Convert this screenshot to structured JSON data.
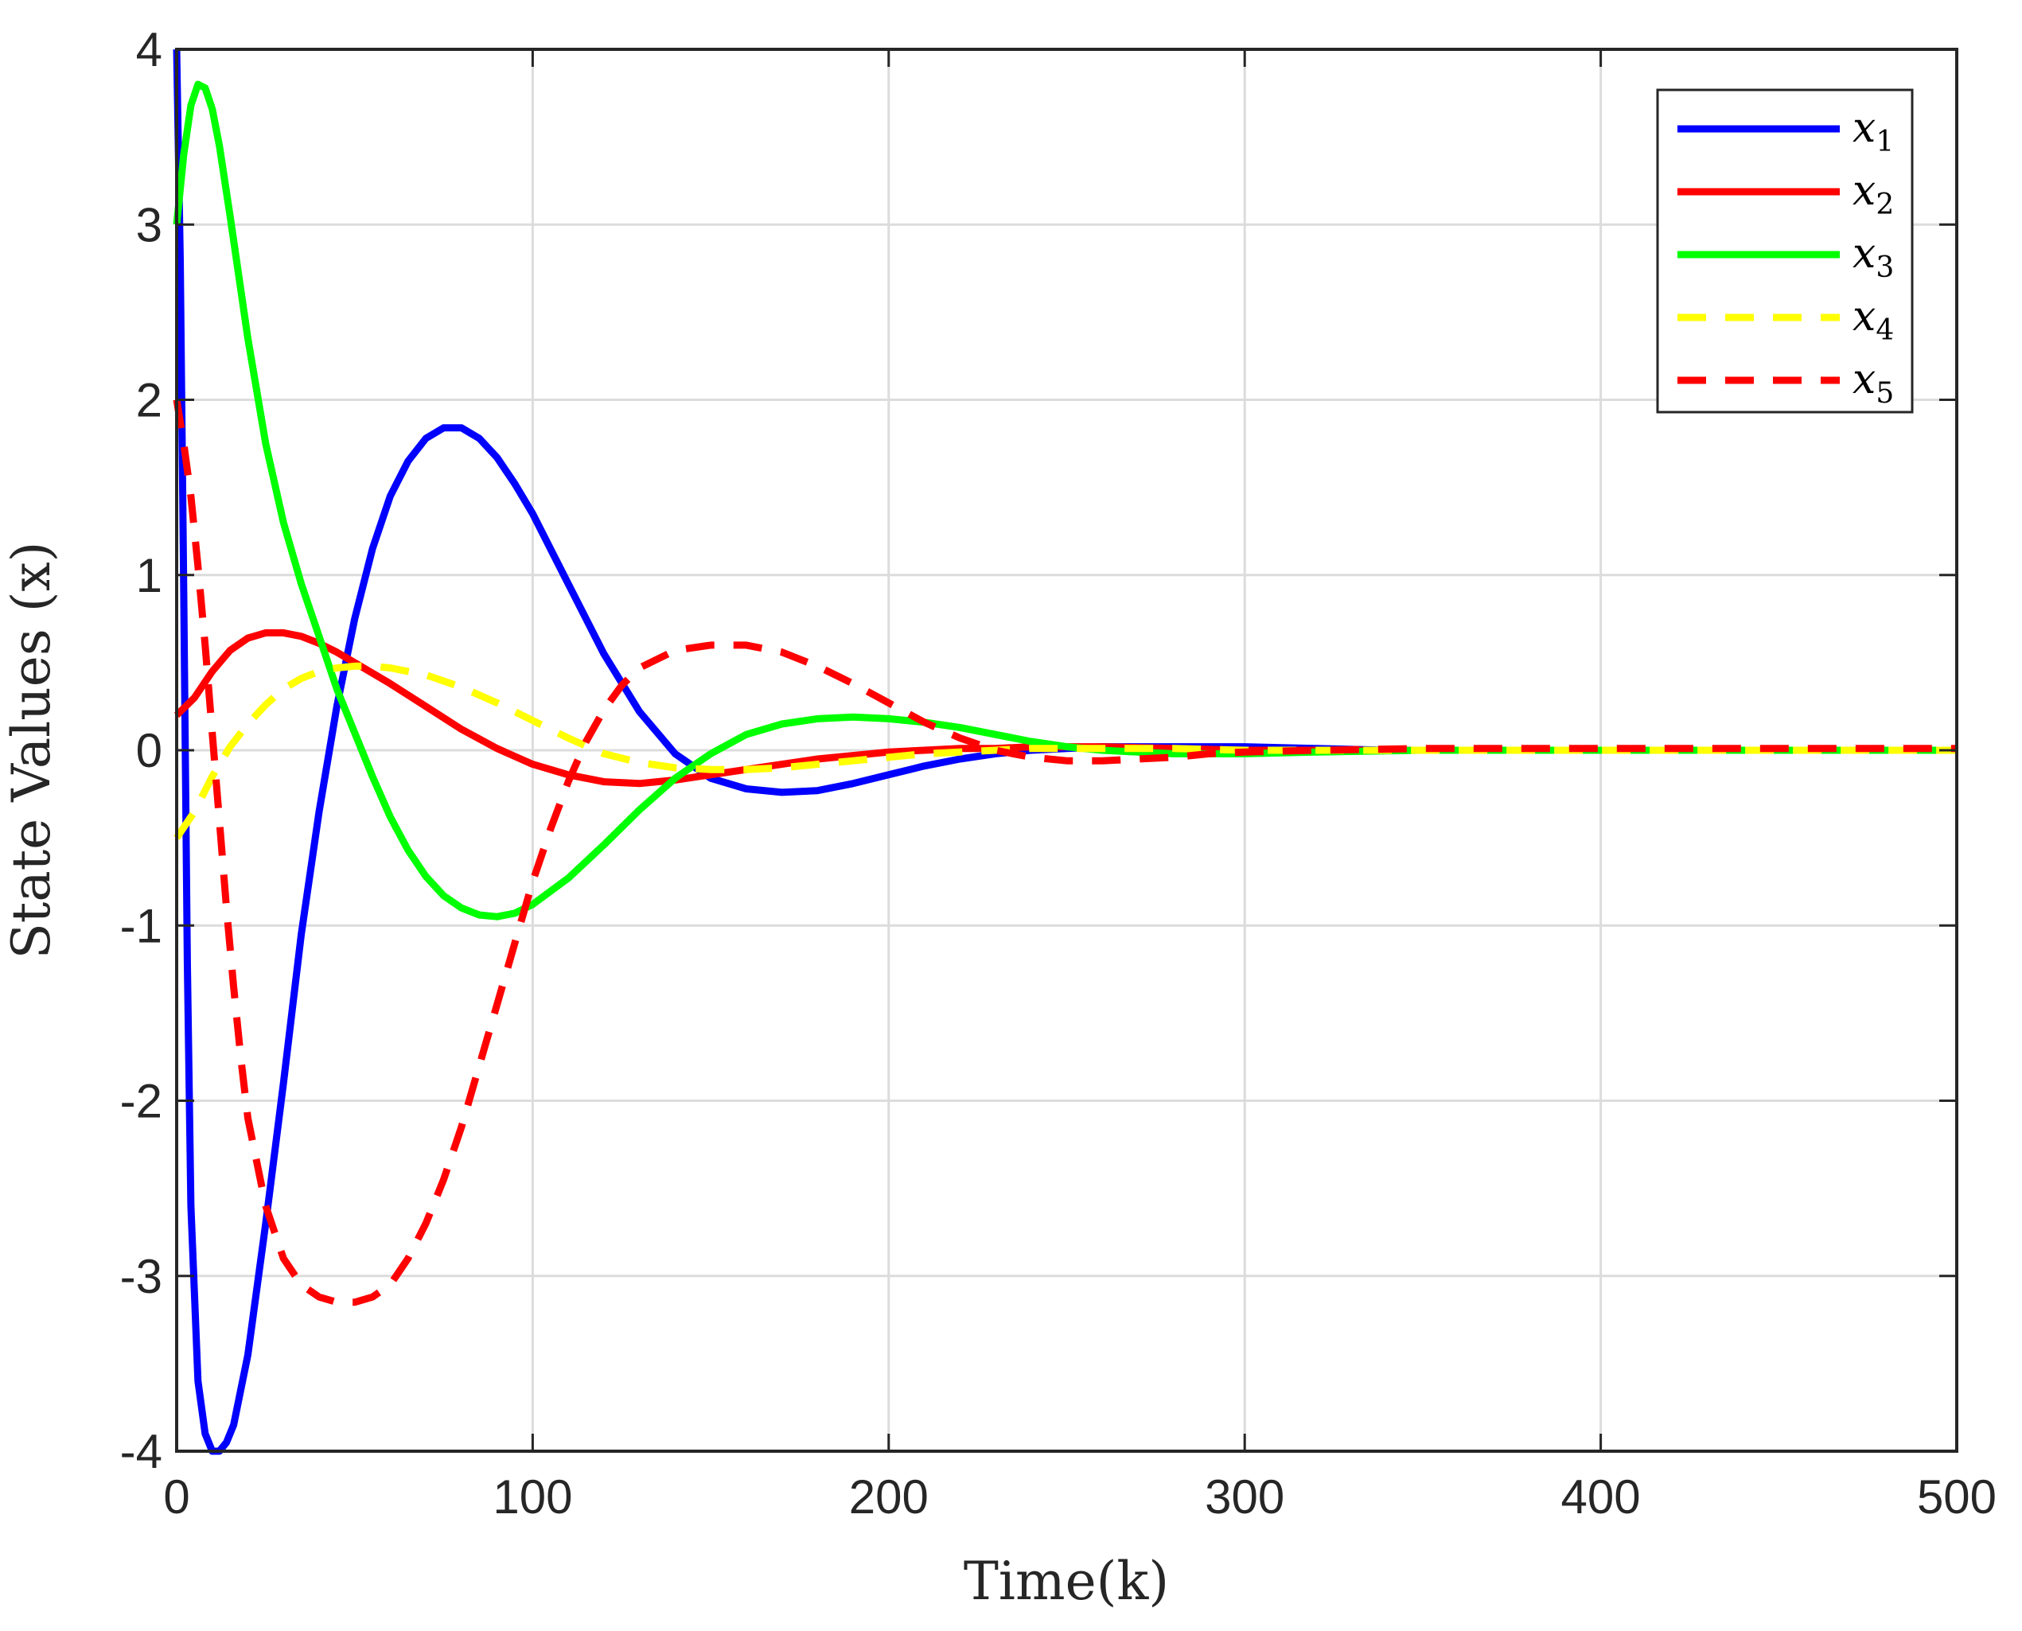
{
  "chart_data": {
    "type": "line",
    "title": "",
    "xlabel": "Time(k)",
    "ylabel": "State Values (x)",
    "xlim": [
      0,
      500
    ],
    "ylim": [
      -4,
      4
    ],
    "xticks": [
      0,
      100,
      200,
      300,
      400,
      500
    ],
    "xtick_labels": [
      "0",
      "100",
      "200",
      "300",
      "400",
      "500"
    ],
    "yticks": [
      -4,
      -3,
      -2,
      -1,
      0,
      1,
      2,
      3,
      4
    ],
    "ytick_labels": [
      "-4",
      "-3",
      "-2",
      "-1",
      "0",
      "1",
      "2",
      "3",
      "4"
    ],
    "grid": true,
    "legend_position": "top-right",
    "series": [
      {
        "name": "x1",
        "color": "#0000ff",
        "style": "solid",
        "x": [
          0,
          1,
          2,
          3,
          4,
          6,
          8,
          10,
          12,
          14,
          16,
          20,
          25,
          30,
          35,
          40,
          45,
          50,
          55,
          60,
          65,
          70,
          75,
          80,
          85,
          90,
          95,
          100,
          110,
          120,
          130,
          140,
          150,
          160,
          170,
          180,
          190,
          200,
          210,
          220,
          230,
          240,
          250,
          260,
          270,
          280,
          290,
          300,
          320,
          340,
          360,
          380,
          400,
          450,
          500
        ],
        "y": [
          4.0,
          2.8,
          0.9,
          -1.2,
          -2.6,
          -3.6,
          -3.9,
          -4.0,
          -4.0,
          -3.95,
          -3.85,
          -3.45,
          -2.7,
          -1.9,
          -1.05,
          -0.35,
          0.25,
          0.75,
          1.15,
          1.45,
          1.65,
          1.78,
          1.84,
          1.84,
          1.78,
          1.67,
          1.52,
          1.35,
          0.95,
          0.55,
          0.22,
          -0.02,
          -0.16,
          -0.22,
          -0.24,
          -0.23,
          -0.19,
          -0.14,
          -0.09,
          -0.05,
          -0.02,
          0.0,
          0.01,
          0.02,
          0.02,
          0.02,
          0.02,
          0.02,
          0.01,
          0.0,
          0.0,
          0.0,
          0.0,
          0.0,
          0.0
        ]
      },
      {
        "name": "x2",
        "color": "#ff0000",
        "style": "solid",
        "x": [
          0,
          5,
          10,
          15,
          20,
          25,
          30,
          35,
          40,
          45,
          50,
          60,
          70,
          80,
          90,
          100,
          110,
          120,
          130,
          140,
          150,
          160,
          170,
          180,
          190,
          200,
          210,
          220,
          230,
          240,
          250,
          260,
          280,
          300,
          350,
          400,
          450,
          500
        ],
        "y": [
          0.2,
          0.3,
          0.45,
          0.57,
          0.64,
          0.67,
          0.67,
          0.65,
          0.61,
          0.56,
          0.5,
          0.38,
          0.25,
          0.12,
          0.01,
          -0.08,
          -0.14,
          -0.18,
          -0.19,
          -0.17,
          -0.14,
          -0.11,
          -0.08,
          -0.05,
          -0.03,
          -0.01,
          0.0,
          0.01,
          0.01,
          0.02,
          0.02,
          0.02,
          0.01,
          0.0,
          0.0,
          0.0,
          0.0,
          0.0
        ]
      },
      {
        "name": "x3",
        "color": "#00ff00",
        "style": "solid",
        "x": [
          0,
          2,
          4,
          6,
          8,
          10,
          12,
          15,
          20,
          25,
          30,
          35,
          40,
          45,
          50,
          55,
          60,
          65,
          70,
          75,
          80,
          85,
          90,
          95,
          100,
          110,
          120,
          130,
          140,
          150,
          160,
          170,
          180,
          190,
          200,
          210,
          220,
          230,
          240,
          250,
          260,
          270,
          280,
          290,
          300,
          320,
          350,
          400,
          450,
          500
        ],
        "y": [
          3.0,
          3.4,
          3.68,
          3.8,
          3.78,
          3.66,
          3.45,
          3.05,
          2.35,
          1.75,
          1.3,
          0.95,
          0.65,
          0.35,
          0.1,
          -0.15,
          -0.38,
          -0.57,
          -0.72,
          -0.83,
          -0.9,
          -0.94,
          -0.95,
          -0.93,
          -0.88,
          -0.73,
          -0.54,
          -0.34,
          -0.16,
          -0.02,
          0.09,
          0.15,
          0.18,
          0.19,
          0.18,
          0.16,
          0.13,
          0.09,
          0.05,
          0.02,
          0.0,
          -0.01,
          -0.02,
          -0.02,
          -0.02,
          -0.01,
          0.0,
          0.0,
          0.0,
          0.0
        ]
      },
      {
        "name": "x4",
        "color": "#ffff00",
        "style": "dashed",
        "x": [
          0,
          5,
          10,
          15,
          20,
          25,
          30,
          35,
          40,
          45,
          50,
          55,
          60,
          70,
          80,
          90,
          100,
          110,
          120,
          130,
          140,
          150,
          160,
          170,
          180,
          190,
          200,
          210,
          220,
          230,
          240,
          250,
          260,
          280,
          300,
          350,
          400,
          450,
          500
        ],
        "y": [
          -0.5,
          -0.35,
          -0.15,
          0.02,
          0.15,
          0.26,
          0.35,
          0.41,
          0.45,
          0.47,
          0.48,
          0.48,
          0.47,
          0.43,
          0.36,
          0.27,
          0.17,
          0.07,
          -0.02,
          -0.07,
          -0.1,
          -0.11,
          -0.11,
          -0.1,
          -0.08,
          -0.06,
          -0.04,
          -0.02,
          -0.01,
          0.0,
          0.01,
          0.01,
          0.01,
          0.01,
          0.0,
          0.0,
          0.0,
          0.0,
          0.0
        ]
      },
      {
        "name": "x5",
        "color": "#ff0000",
        "style": "dashed",
        "x": [
          0,
          2,
          4,
          6,
          8,
          10,
          12,
          14,
          16,
          18,
          20,
          25,
          30,
          35,
          40,
          45,
          50,
          55,
          60,
          65,
          70,
          75,
          80,
          85,
          90,
          95,
          100,
          105,
          110,
          115,
          120,
          125,
          130,
          140,
          150,
          160,
          170,
          180,
          190,
          200,
          210,
          220,
          230,
          240,
          250,
          260,
          270,
          280,
          290,
          300,
          320,
          350,
          400,
          450,
          500
        ],
        "y": [
          2.0,
          1.75,
          1.45,
          1.05,
          0.6,
          0.1,
          -0.4,
          -0.9,
          -1.35,
          -1.75,
          -2.1,
          -2.6,
          -2.9,
          -3.05,
          -3.12,
          -3.15,
          -3.15,
          -3.12,
          -3.05,
          -2.9,
          -2.7,
          -2.45,
          -2.15,
          -1.8,
          -1.45,
          -1.1,
          -0.75,
          -0.45,
          -0.18,
          0.05,
          0.23,
          0.37,
          0.47,
          0.57,
          0.6,
          0.6,
          0.56,
          0.48,
          0.38,
          0.27,
          0.16,
          0.07,
          0.0,
          -0.04,
          -0.06,
          -0.06,
          -0.05,
          -0.04,
          -0.02,
          -0.01,
          0.0,
          0.01,
          0.01,
          0.01,
          0.01
        ]
      }
    ]
  }
}
